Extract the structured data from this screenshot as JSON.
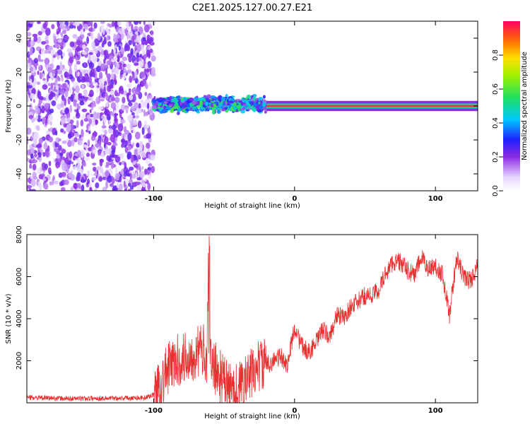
{
  "figure_title": "C2E1.2025.127.00.27.E21",
  "colors": {
    "signal": "#e83030",
    "purple": "#8a2be2",
    "axis": "#000000"
  },
  "chart_data": [
    {
      "type": "heatmap",
      "xlabel": "Height of straight line (km)",
      "ylabel": "Frequency (Hz)",
      "xlim": [
        -190,
        130
      ],
      "ylim": [
        -50,
        50
      ],
      "x_ticks": [
        -100,
        0,
        100
      ],
      "y_ticks": [
        -40,
        -20,
        0,
        20,
        40
      ],
      "colorbar": {
        "label": "Normalized spectral amplitude",
        "range": [
          0,
          1
        ],
        "ticks": [
          "0.0",
          "0.2",
          "0.4",
          "0.6",
          "0.8"
        ]
      },
      "regions": [
        {
          "x_range": [
            -190,
            -100
          ],
          "description_level": "noise",
          "freq_span": [
            -50,
            50
          ],
          "amplitude": 0.15
        },
        {
          "x_range": [
            -100,
            -20
          ],
          "description_level": "scattered",
          "freq_span": [
            -8,
            8
          ],
          "amplitude": 0.4
        },
        {
          "x_range": [
            -20,
            130
          ],
          "description_level": "carrier",
          "freq_span": [
            -2,
            2
          ],
          "amplitude": 0.95
        }
      ]
    },
    {
      "type": "line",
      "xlabel": "Height of straight line (km)",
      "ylabel": "SNR (10 * v/v)",
      "xlim": [
        -190,
        130
      ],
      "ylim": [
        0,
        8000
      ],
      "x_ticks": [
        -100,
        0,
        100
      ],
      "y_ticks": [
        2000,
        4000,
        6000,
        8000
      ],
      "series": [
        {
          "color": "#e83030",
          "x": [
            -190,
            -160,
            -130,
            -105,
            -100,
            -95,
            -90,
            -85,
            -80,
            -75,
            -70,
            -65,
            -60,
            -55,
            -50,
            -45,
            -40,
            -35,
            -30,
            -25,
            -20,
            -15,
            -10,
            -5,
            0,
            5,
            10,
            15,
            20,
            25,
            30,
            35,
            40,
            45,
            50,
            55,
            60,
            65,
            70,
            75,
            80,
            85,
            90,
            95,
            100,
            105,
            110,
            115,
            120,
            125,
            130
          ],
          "y": [
            250,
            200,
            220,
            250,
            400,
            900,
            1600,
            1900,
            2100,
            2200,
            2400,
            2500,
            2000,
            1500,
            1000,
            600,
            700,
            1000,
            1400,
            1800,
            1800,
            2000,
            2200,
            1800,
            3600,
            2700,
            2400,
            2800,
            3500,
            3100,
            4200,
            4000,
            4600,
            4800,
            5100,
            5100,
            5400,
            6200,
            6700,
            6700,
            6300,
            6100,
            6900,
            6400,
            6500,
            6100,
            4200,
            6900,
            6000,
            5800,
            6500
          ]
        }
      ]
    }
  ]
}
